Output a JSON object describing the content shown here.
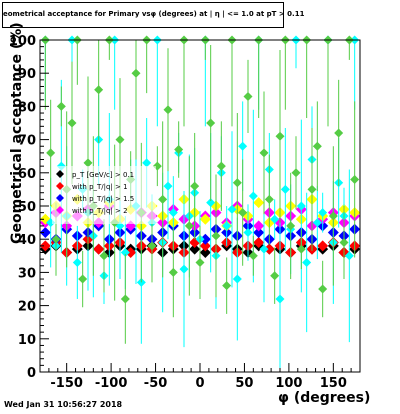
{
  "title": "eometrical acceptance for Primary vsφ (degrees) at | η | <= 1.0 at pT > 0.11",
  "xlabel": "φ (degrees)",
  "ylabel": "Geometrical acceptance (%)",
  "timestamp": "Wed Jan 31 10:56:27 2018",
  "legend_entries": [
    "p_T [GeV/c] > 0.1",
    "with p_T/|q| > 1",
    "with p_T/|q| > 1.5",
    "with p_T/|q| > 2"
  ],
  "colors": {
    "frame": "#000000",
    "black": "#000000",
    "red": "#ff0000",
    "blue": "#0000ff",
    "magenta": "#ff00ff",
    "yellow": "#ffff00",
    "green": "#55cc44",
    "cyan": "#00ffff"
  },
  "chart_data": {
    "type": "scatter",
    "xlim": [
      -180,
      180
    ],
    "ylim": [
      0,
      100
    ],
    "x_ticks": [
      -150,
      -100,
      -50,
      0,
      50,
      100,
      150
    ],
    "y_ticks": [
      0,
      10,
      20,
      30,
      40,
      50,
      60,
      70,
      80,
      90,
      100
    ],
    "grid": false,
    "legend_position": "left-middle",
    "series": [
      {
        "color": "black",
        "marker": "diamond",
        "x": [
          -174,
          -162,
          -150,
          -138,
          -126,
          -114,
          -102,
          -90,
          -78,
          -66,
          -54,
          -42,
          -30,
          -18,
          -6,
          6,
          18,
          30,
          42,
          54,
          66,
          78,
          90,
          102,
          114,
          126,
          138,
          150,
          162,
          174
        ],
        "y": [
          37,
          38,
          36,
          37,
          38,
          37,
          36,
          38,
          37,
          37,
          38,
          36,
          37,
          38,
          37,
          36,
          37,
          38,
          37,
          36,
          38,
          37,
          37,
          36,
          38,
          37,
          37,
          38,
          36,
          37
        ]
      },
      {
        "color": "red",
        "marker": "diamond",
        "x": [
          -174,
          -162,
          -150,
          -138,
          -126,
          -114,
          -102,
          -90,
          -78,
          -66,
          -54,
          -42,
          -30,
          -18,
          -6,
          6,
          18,
          30,
          42,
          54,
          66,
          78,
          90,
          102,
          114,
          126,
          138,
          150,
          162,
          174
        ],
        "y": [
          38,
          39,
          36,
          38,
          40,
          37,
          38,
          39,
          36,
          38,
          37,
          39,
          38,
          36,
          39,
          38,
          37,
          39,
          36,
          38,
          39,
          37,
          38,
          36,
          39,
          37,
          38,
          39,
          36,
          38
        ]
      },
      {
        "color": "blue",
        "marker": "diamond",
        "x": [
          -174,
          -162,
          -150,
          -138,
          -126,
          -114,
          -102,
          -90,
          -78,
          -66,
          -54,
          -42,
          -30,
          -18,
          -6,
          6,
          18,
          30,
          42,
          54,
          66,
          78,
          90,
          102,
          114,
          126,
          138,
          150,
          162,
          174
        ],
        "y": [
          42,
          40,
          43,
          41,
          42,
          44,
          40,
          42,
          43,
          41,
          40,
          42,
          44,
          41,
          42,
          40,
          43,
          42,
          41,
          44,
          42,
          40,
          43,
          41,
          42,
          40,
          44,
          42,
          41,
          43
        ]
      },
      {
        "color": "magenta",
        "marker": "diamond",
        "x": [
          -174,
          -162,
          -150,
          -138,
          -126,
          -114,
          -102,
          -90,
          -78,
          -66,
          -54,
          -42,
          -30,
          -18,
          -6,
          6,
          18,
          30,
          42,
          54,
          66,
          78,
          90,
          102,
          114,
          126,
          138,
          150,
          162,
          174
        ],
        "y": [
          45,
          48,
          44,
          47,
          49,
          45,
          50,
          46,
          44,
          48,
          47,
          45,
          49,
          46,
          44,
          47,
          48,
          45,
          50,
          46,
          44,
          48,
          45,
          47,
          49,
          44,
          46,
          48,
          45,
          47
        ]
      },
      {
        "color": "yellow",
        "marker": "diamond",
        "x": [
          -174,
          -162,
          -150,
          -138,
          -126,
          -114,
          -102,
          -90,
          -78,
          -66,
          -54,
          -42,
          -30,
          -18,
          -6,
          6,
          18,
          30,
          42,
          54,
          66,
          78,
          90,
          102,
          114,
          126,
          138,
          150,
          162,
          174
        ],
        "y": [
          46,
          50,
          47,
          52,
          45,
          48,
          51,
          46,
          49,
          44,
          50,
          47,
          45,
          52,
          48,
          46,
          50,
          44,
          49,
          47,
          51,
          45,
          48,
          50,
          46,
          52,
          47,
          45,
          49,
          48
        ]
      },
      {
        "color": "cyan",
        "marker": "diamond",
        "x": [
          -174,
          -168,
          -162,
          -156,
          -150,
          -144,
          -138,
          -132,
          -126,
          -120,
          -114,
          -108,
          -102,
          -96,
          -90,
          -84,
          -78,
          -72,
          -66,
          -60,
          -54,
          -48,
          -42,
          -36,
          -30,
          -24,
          -18,
          -12,
          -6,
          0,
          6,
          12,
          18,
          24,
          30,
          36,
          42,
          48,
          54,
          60,
          66,
          72,
          78,
          84,
          90,
          96,
          102,
          108,
          114,
          120,
          126,
          132,
          138,
          144,
          150,
          156,
          162,
          168,
          174
        ],
        "y": [
          100,
          45,
          38,
          62,
          47,
          100,
          33,
          55,
          48,
          41,
          70,
          29,
          52,
          100,
          44,
          36,
          58,
          50,
          27,
          63,
          45,
          100,
          39,
          56,
          48,
          66,
          31,
          47,
          54,
          40,
          100,
          51,
          35,
          60,
          44,
          49,
          28,
          68,
          42,
          53,
          100,
          37,
          61,
          46,
          22,
          55,
          43,
          100,
          50,
          33,
          64,
          45,
          48,
          100,
          39,
          57,
          47,
          35,
          100
        ]
      },
      {
        "color": "green",
        "marker": "diamond",
        "x": [
          -174,
          -168,
          -162,
          -156,
          -150,
          -144,
          -138,
          -132,
          -126,
          -120,
          -114,
          -108,
          -102,
          -96,
          -90,
          -84,
          -78,
          -72,
          -66,
          -60,
          -54,
          -48,
          -42,
          -36,
          -30,
          -24,
          -18,
          -12,
          -6,
          0,
          6,
          12,
          18,
          24,
          30,
          36,
          42,
          48,
          54,
          60,
          66,
          72,
          78,
          84,
          90,
          96,
          102,
          108,
          114,
          120,
          126,
          132,
          138,
          144,
          150,
          156,
          162,
          168,
          174
        ],
        "y": [
          100,
          66,
          40,
          80,
          55,
          75,
          100,
          28,
          63,
          50,
          85,
          35,
          100,
          45,
          70,
          22,
          58,
          90,
          48,
          100,
          38,
          62,
          52,
          79,
          30,
          67,
          100,
          44,
          56,
          33,
          100,
          75,
          41,
          62,
          26,
          100,
          57,
          48,
          83,
          35,
          100,
          66,
          52,
          29,
          71,
          100,
          44,
          60,
          37,
          100,
          55,
          68,
          25,
          100,
          47,
          72,
          39,
          100,
          58
        ]
      }
    ]
  }
}
